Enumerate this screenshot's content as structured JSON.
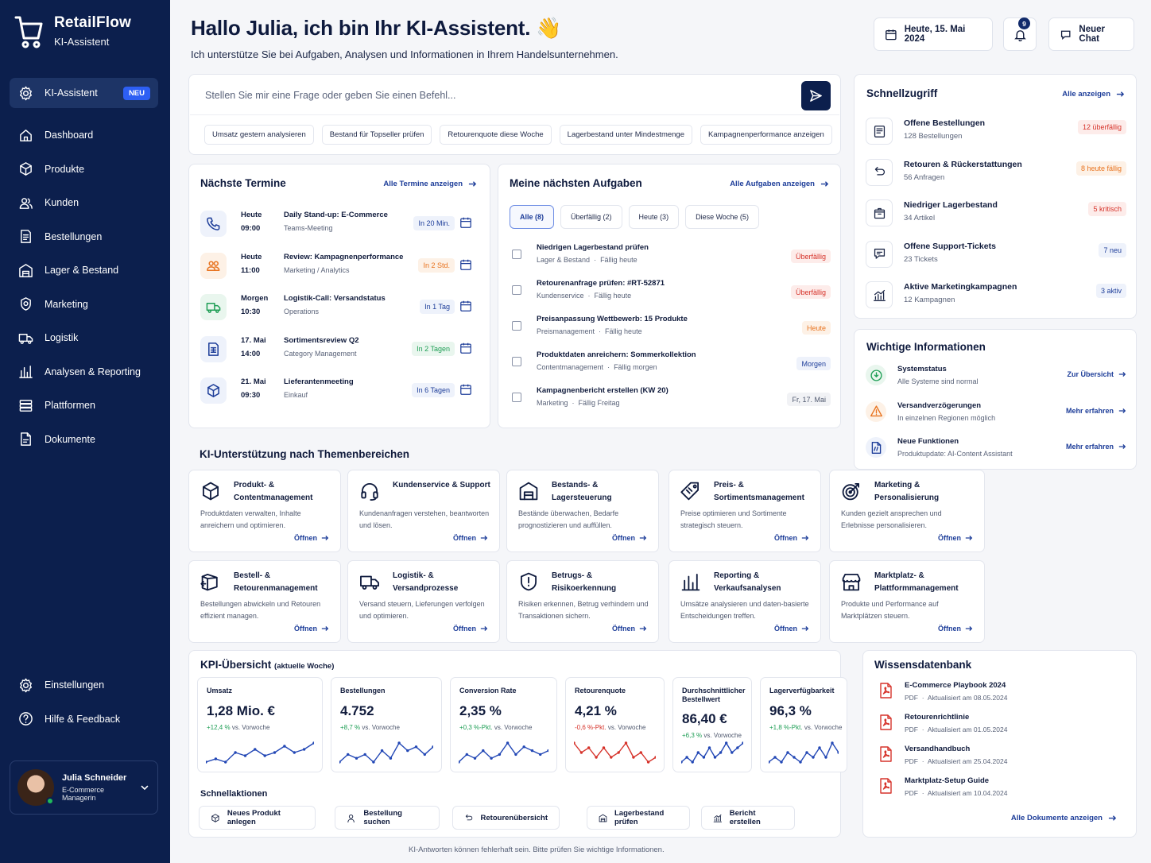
{
  "brand": {
    "name": "RetailFlow",
    "sub": "KI-Assistent"
  },
  "nav": [
    {
      "label": "KI-Assistent",
      "badge": "NEU",
      "icon": "gear-icon"
    },
    {
      "label": "Dashboard",
      "icon": "home-icon"
    },
    {
      "label": "Produkte",
      "icon": "box-icon"
    },
    {
      "label": "Kunden",
      "icon": "users-icon"
    },
    {
      "label": "Bestellungen",
      "icon": "document-icon"
    },
    {
      "label": "Lager & Bestand",
      "icon": "warehouse-icon"
    },
    {
      "label": "Marketing",
      "icon": "badge-icon"
    },
    {
      "label": "Logistik",
      "icon": "truck-icon"
    },
    {
      "label": "Analysen & Reporting",
      "icon": "bar-chart-icon"
    },
    {
      "label": "Plattformen",
      "icon": "layers-icon"
    },
    {
      "label": "Dokumente",
      "icon": "file-icon"
    }
  ],
  "nav_bottom": [
    {
      "label": "Einstellungen",
      "icon": "gear-icon"
    },
    {
      "label": "Hilfe & Feedback",
      "icon": "help-icon"
    }
  ],
  "user": {
    "name": "Julia Schneider",
    "role": "E-Commerce Managerin"
  },
  "header": {
    "title": "Hallo Julia, ich bin Ihr KI-Assistent. 👋",
    "subtitle": "Ich unterstütze Sie bei Aufgaben, Analysen und Informationen in Ihrem Handelsunternehmen.",
    "date": "Heute, 15. Mai 2024",
    "notifications": "9",
    "new_chat": "Neuer Chat"
  },
  "chat": {
    "placeholder": "Stellen Sie mir eine Frage oder geben Sie einen Befehl...",
    "chips": [
      "Umsatz gestern analysieren",
      "Bestand für Topseller prüfen",
      "Retourenquote diese Woche",
      "Lagerbestand unter Mindestmenge",
      "Kampagnenperformance anzeigen"
    ]
  },
  "termine": {
    "title": "Nächste Termine",
    "link": "Alle Termine anzeigen",
    "items": [
      {
        "day": "Heute",
        "time": "09:00",
        "title": "Daily Stand-up: E-Commerce",
        "sub": "Teams-Meeting",
        "pill": "In 20 Min.",
        "icon": "phone-icon",
        "color": "#1d3d99",
        "bg": "#eef2fb",
        "pill_color": "#1d3d99",
        "pill_bg": "#eef2fb"
      },
      {
        "day": "Heute",
        "time": "11:00",
        "title": "Review: Kampagnenperformance",
        "sub": "Marketing / Analytics",
        "pill": "In 2 Std.",
        "icon": "group-icon",
        "color": "#e8731f",
        "bg": "#fdf1e6",
        "pill_color": "#e8731f",
        "pill_bg": "#fdf1e6"
      },
      {
        "day": "Morgen",
        "time": "10:30",
        "title": "Logistik-Call: Versandstatus",
        "sub": "Operations",
        "pill": "In 1 Tag",
        "icon": "truck-icon",
        "color": "#1e9e55",
        "bg": "#e9f6ee",
        "pill_color": "#1d3d99",
        "pill_bg": "#eef2fb"
      },
      {
        "day": "17. Mai",
        "time": "14:00",
        "title": "Sortimentsreview Q2",
        "sub": "Category Management",
        "pill": "In 2 Tagen",
        "icon": "sheet-icon",
        "color": "#1d3d99",
        "bg": "#eef2fb",
        "pill_color": "#1e9e55",
        "pill_bg": "#e9f6ee"
      },
      {
        "day": "21. Mai",
        "time": "09:30",
        "title": "Lieferantenmeeting",
        "sub": "Einkauf",
        "pill": "In 6 Tagen",
        "icon": "cube-icon",
        "color": "#1d3d99",
        "bg": "#eef2fb",
        "pill_color": "#1d3d99",
        "pill_bg": "#eef2fb"
      }
    ]
  },
  "aufgaben": {
    "title": "Meine nächsten Aufgaben",
    "link": "Alle Aufgaben anzeigen",
    "tabs": [
      "Alle (8)",
      "Überfällig (2)",
      "Heute (3)",
      "Diese Woche (5)"
    ],
    "items": [
      {
        "title": "Niedrigen Lagerbestand prüfen",
        "area": "Lager & Bestand",
        "due": "Fällig heute",
        "badge": "Überfällig",
        "color": "#d6332b",
        "bg": "#fdecea"
      },
      {
        "title": "Retourenanfrage prüfen: #RT-52871",
        "area": "Kundenservice",
        "due": "Fällig heute",
        "badge": "Überfällig",
        "color": "#d6332b",
        "bg": "#fdecea"
      },
      {
        "title": "Preisanpassung Wettbewerb: 15 Produkte",
        "area": "Preismanagement",
        "due": "Fällig heute",
        "badge": "Heute",
        "color": "#e8731f",
        "bg": "#fdf1e6"
      },
      {
        "title": "Produktdaten anreichern: Sommerkollektion",
        "area": "Contentmanagement",
        "due": "Fällig morgen",
        "badge": "Morgen",
        "color": "#1d3d99",
        "bg": "#eef2fb"
      },
      {
        "title": "Kampagnenbericht erstellen (KW 20)",
        "area": "Marketing",
        "due": "Fällig Freitag",
        "badge": "Fr, 17. Mai",
        "color": "#4f586e",
        "bg": "#f1f2f5"
      }
    ]
  },
  "schnell": {
    "title": "Schnellzugriff",
    "link": "Alle anzeigen",
    "items": [
      {
        "title": "Offene Bestellungen",
        "sub": "128 Bestellungen",
        "badge": "12 überfällig",
        "color": "#d6332b",
        "bg": "#fdecea",
        "icon": "receipt-icon"
      },
      {
        "title": "Retouren & Rückerstattungen",
        "sub": "56 Anfragen",
        "badge": "8 heute fällig",
        "color": "#e8731f",
        "bg": "#fdf1e6",
        "icon": "return-icon"
      },
      {
        "title": "Niedriger Lagerbestand",
        "sub": "34 Artikel",
        "badge": "5 kritisch",
        "color": "#d6332b",
        "bg": "#fdecea",
        "icon": "package-icon"
      },
      {
        "title": "Offene Support-Tickets",
        "sub": "23 Tickets",
        "badge": "7 neu",
        "color": "#1d3d99",
        "bg": "#eef2fb",
        "icon": "chat-icon"
      },
      {
        "title": "Aktive Marketingkampagnen",
        "sub": "12 Kampagnen",
        "badge": "3 aktiv",
        "color": "#1d3d99",
        "bg": "#eef2fb",
        "icon": "analytics-icon"
      }
    ]
  },
  "infos": {
    "title": "Wichtige Informationen",
    "items": [
      {
        "title": "Systemstatus",
        "sub": "Alle Systeme sind normal",
        "link": "Zur Übersicht",
        "color": "#1e9e55",
        "bg": "#e9f6ee",
        "icon": "status-icon"
      },
      {
        "title": "Versandverzögerungen",
        "sub": "In einzelnen Regionen möglich",
        "link": "Mehr erfahren",
        "color": "#e8731f",
        "bg": "#fdf1e6",
        "icon": "warning-icon"
      },
      {
        "title": "Neue Funktionen",
        "sub": "Produktupdate: AI-Content Assistant",
        "link": "Mehr erfahren",
        "color": "#1d3d99",
        "bg": "#eef2fb",
        "icon": "new-doc-icon"
      }
    ]
  },
  "ki": {
    "title": "KI-Unterstützung nach Themenbereichen",
    "open": "Öffnen",
    "tiles": [
      {
        "title": "Produkt- & Contentmanagement",
        "desc": "Produktdaten verwalten, Inhalte anreichern und optimieren.",
        "icon": "cube-icon"
      },
      {
        "title": "Kundenservice & Support",
        "desc": "Kundenanfragen verstehen, beantworten und lösen.",
        "icon": "headset-icon"
      },
      {
        "title": "Bestands- & Lagersteuerung",
        "desc": "Bestände überwachen, Bedarfe prognostizieren und auffüllen.",
        "icon": "warehouse-icon"
      },
      {
        "title": "Preis- & Sortimentsmanagement",
        "desc": "Preise optimieren und Sortimente strategisch steuern.",
        "icon": "tag-icon"
      },
      {
        "title": "Marketing & Personalisierung",
        "desc": "Kunden gezielt ansprechen und Erlebnisse personalisieren.",
        "icon": "target-icon"
      },
      {
        "title": "Bestell- & Retourenmanagement",
        "desc": "Bestellungen abwickeln und Retouren effizient managen.",
        "icon": "box-return-icon"
      },
      {
        "title": "Logistik- & Versandprozesse",
        "desc": "Versand steuern, Lieferungen verfolgen und optimieren.",
        "icon": "truck-icon"
      },
      {
        "title": "Betrugs- & Risikoerkennung",
        "desc": "Risiken erkennen, Betrug verhindern und Transaktionen sichern.",
        "icon": "shield-icon"
      },
      {
        "title": "Reporting & Verkaufsanalysen",
        "desc": "Umsätze analysieren und daten-basierte Entscheidungen treffen.",
        "icon": "bar-chart-icon"
      },
      {
        "title": "Marktplatz- & Plattformmanagement",
        "desc": "Produkte und Performance auf Marktplätzen steuern.",
        "icon": "store-icon"
      }
    ]
  },
  "kpi": {
    "title": "KPI-Übersicht",
    "title_suffix": "(aktuelle Woche)",
    "items": [
      {
        "label": "Umsatz",
        "value": "1,28 Mio. €",
        "delta": "+12,4 %",
        "delta_text": "vs. Vorwoche",
        "color": "#1e9e55",
        "line": "#2247b5",
        "points": [
          3,
          4,
          3,
          6,
          5,
          7,
          5,
          6,
          8,
          6,
          7,
          9
        ]
      },
      {
        "label": "Bestellungen",
        "value": "4.752",
        "delta": "+8,7 %",
        "delta_text": "vs. Vorwoche",
        "color": "#1e9e55",
        "line": "#2247b5",
        "points": [
          4,
          6,
          5,
          6,
          4,
          7,
          5,
          9,
          7,
          8,
          6,
          8
        ]
      },
      {
        "label": "Conversion Rate",
        "value": "2,35 %",
        "delta": "+0,3 %-Pkt.",
        "delta_text": "vs. Vorwoche",
        "color": "#1e9e55",
        "line": "#2247b5",
        "points": [
          3,
          5,
          4,
          6,
          4,
          5,
          8,
          5,
          7,
          6,
          5,
          6
        ]
      },
      {
        "label": "Retourenquote",
        "value": "4,21 %",
        "delta": "-0,6 %-Pkt.",
        "delta_text": "vs. Vorwoche",
        "color": "#d6332b",
        "line": "#d6332b",
        "points": [
          8,
          6,
          7,
          5,
          7,
          5,
          6,
          8,
          5,
          6,
          4,
          5
        ]
      },
      {
        "label": "Durchschnittlicher Bestellwert",
        "value": "86,40 €",
        "delta": "+6,3 %",
        "delta_text": "vs. Vorwoche",
        "color": "#1e9e55",
        "line": "#2247b5",
        "points": [
          3,
          4,
          3,
          5,
          4,
          6,
          4,
          5,
          7,
          5,
          6,
          7
        ]
      },
      {
        "label": "Lagerverfügbarkeit",
        "value": "96,3 %",
        "delta": "+1,8 %-Pkt.",
        "delta_text": "vs. Vorwoche",
        "color": "#1e9e55",
        "line": "#2247b5",
        "points": [
          5,
          6,
          5,
          7,
          6,
          5,
          7,
          6,
          8,
          6,
          9,
          7
        ]
      }
    ],
    "actions_title": "Schnellaktionen",
    "actions": [
      {
        "label": "Neues Produkt anlegen",
        "icon": "cube-icon"
      },
      {
        "label": "Bestellung suchen",
        "icon": "user-search-icon"
      },
      {
        "label": "Retourenübersicht",
        "icon": "return-icon"
      },
      {
        "label": "Lagerbestand prüfen",
        "icon": "warehouse-icon"
      },
      {
        "label": "Bericht erstellen",
        "icon": "analytics-icon"
      }
    ]
  },
  "wissen": {
    "title": "Wissensdatenbank",
    "link": "Alle Dokumente anzeigen",
    "items": [
      {
        "title": "E-Commerce Playbook 2024",
        "type": "PDF",
        "updated": "Aktualisiert am 08.05.2024"
      },
      {
        "title": "Retourenrichtlinie",
        "type": "PDF",
        "updated": "Aktualisiert am 01.05.2024"
      },
      {
        "title": "Versandhandbuch",
        "type": "PDF",
        "updated": "Aktualisiert am 25.04.2024"
      },
      {
        "title": "Marktplatz-Setup Guide",
        "type": "PDF",
        "updated": "Aktualisiert am 10.04.2024"
      }
    ]
  },
  "footer": "KI-Antworten können fehlerhaft sein. Bitte prüfen Sie wichtige Informationen."
}
